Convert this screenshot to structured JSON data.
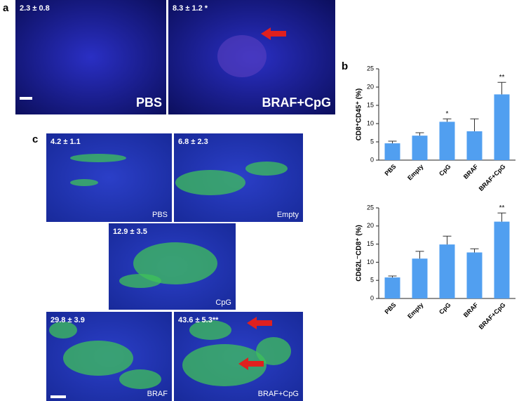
{
  "panel_letters": [
    "a",
    "b",
    "c"
  ],
  "images": [
    {
      "stat": "2.3 ± 0.8",
      "label": "PBS"
    },
    {
      "stat": "8.3 ± 1.2 *",
      "label": "BRAF+CpG"
    },
    {
      "stat": "4.2 ± 1.1",
      "label": "PBS"
    },
    {
      "stat": "6.8 ± 2.3",
      "label": "Empty"
    },
    {
      "stat": "12.9 ± 3.5",
      "label": "CpG"
    },
    {
      "stat": "29.8 ± 3.9",
      "label": "BRAF"
    },
    {
      "stat": "43.6 ± 5.3**",
      "label": "BRAF+CpG"
    }
  ],
  "chart_data": [
    {
      "type": "bar",
      "y_label": "CD8⁺CD45⁺ (%)",
      "categories": [
        "PBS",
        "Empty",
        "CpG",
        "BRAF",
        "BRAF+CpG"
      ],
      "values": [
        4.6,
        6.7,
        10.5,
        7.9,
        18
      ],
      "errors": [
        0.6,
        0.8,
        0.8,
        3.4,
        3.3
      ],
      "annotations": [
        null,
        null,
        "*",
        null,
        "**"
      ],
      "color": "#519ff0",
      "ylim": [
        0,
        25
      ],
      "yticks": [
        0,
        5,
        10,
        15,
        20,
        25
      ]
    },
    {
      "type": "bar",
      "y_label": "CD62L⁻CD8⁺ (%)",
      "categories": [
        "PBS",
        "Empty",
        "CpG",
        "BRAF",
        "BRAF+CpG"
      ],
      "values": [
        5.8,
        11,
        14.9,
        12.7,
        21.2
      ],
      "errors": [
        0.4,
        2,
        2.3,
        1,
        2.4
      ],
      "annotations": [
        null,
        null,
        null,
        null,
        "**"
      ],
      "color": "#519ff0",
      "ylim": [
        0,
        25
      ],
      "yticks": [
        0,
        5,
        10,
        15,
        20,
        25
      ]
    }
  ]
}
